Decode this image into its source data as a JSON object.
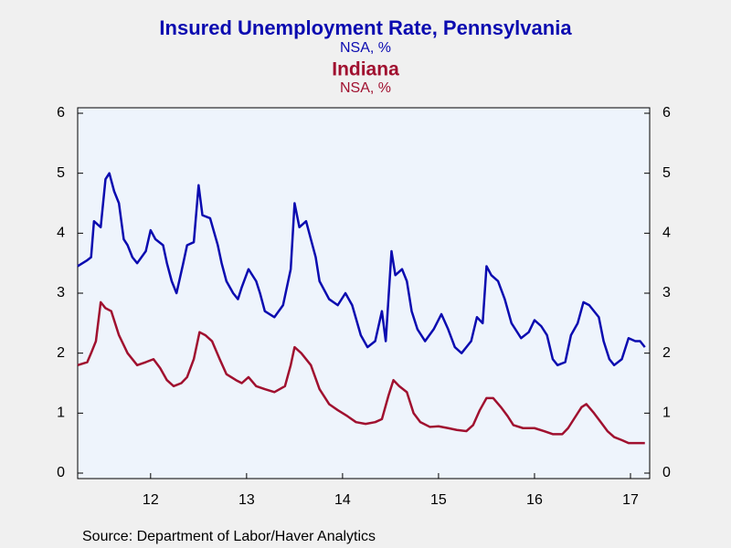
{
  "chart_data": {
    "type": "line",
    "title": "Insured Unemployment Rate, Pennsylvania",
    "subtitle": "NSA, %",
    "title2": "Indiana",
    "subtitle2": "NSA, %",
    "source": "Source:  Department of Labor/Haver Analytics",
    "xlim": [
      2011.74,
      2017.7
    ],
    "xticks": [
      {
        "value": 2012.5,
        "label": "12"
      },
      {
        "value": 2013.5,
        "label": "13"
      },
      {
        "value": 2014.5,
        "label": "14"
      },
      {
        "value": 2015.5,
        "label": "15"
      },
      {
        "value": 2016.5,
        "label": "16"
      },
      {
        "value": 2017.5,
        "label": "17"
      }
    ],
    "ylim": [
      0,
      6
    ],
    "yticks": [
      0,
      1,
      2,
      3,
      4,
      5,
      6
    ],
    "y2lim": [
      0,
      6
    ],
    "y2ticks": [
      0,
      1,
      2,
      3,
      4,
      5,
      6
    ],
    "series": [
      {
        "name": "Pennsylvania",
        "color": "#0b0bb0",
        "x": [
          2011.74,
          2011.84,
          2011.88,
          2011.91,
          2011.98,
          2012.03,
          2012.07,
          2012.12,
          2012.17,
          2012.22,
          2012.26,
          2012.31,
          2012.36,
          2012.45,
          2012.5,
          2012.55,
          2012.63,
          2012.67,
          2012.72,
          2012.77,
          2012.84,
          2012.88,
          2012.95,
          2013.0,
          2013.04,
          2013.12,
          2013.2,
          2013.24,
          2013.29,
          2013.36,
          2013.41,
          2013.45,
          2013.52,
          2013.6,
          2013.64,
          2013.69,
          2013.79,
          2013.88,
          2013.96,
          2014.0,
          2014.05,
          2014.12,
          2014.17,
          2014.22,
          2014.26,
          2014.36,
          2014.45,
          2014.53,
          2014.6,
          2014.69,
          2014.76,
          2014.84,
          2014.91,
          2014.95,
          2015.01,
          2015.05,
          2015.12,
          2015.17,
          2015.22,
          2015.28,
          2015.36,
          2015.45,
          2015.53,
          2015.6,
          2015.67,
          2015.74,
          2015.84,
          2015.9,
          2015.96,
          2016.0,
          2016.05,
          2016.12,
          2016.19,
          2016.26,
          2016.36,
          2016.44,
          2016.5,
          2016.57,
          2016.63,
          2016.69,
          2016.74,
          2016.82,
          2016.88,
          2016.95,
          2017.01,
          2017.07,
          2017.17,
          2017.22,
          2017.28,
          2017.33,
          2017.41,
          2017.48,
          2017.55,
          2017.6,
          2017.65
        ],
        "values": [
          3.45,
          3.55,
          3.6,
          4.2,
          4.1,
          4.9,
          5.0,
          4.7,
          4.5,
          3.9,
          3.8,
          3.6,
          3.5,
          3.7,
          4.05,
          3.9,
          3.8,
          3.5,
          3.2,
          3.0,
          3.5,
          3.8,
          3.85,
          4.8,
          4.3,
          4.25,
          3.8,
          3.5,
          3.2,
          3.0,
          2.9,
          3.1,
          3.4,
          3.2,
          3.0,
          2.7,
          2.6,
          2.8,
          3.4,
          4.5,
          4.1,
          4.2,
          3.9,
          3.6,
          3.2,
          2.9,
          2.8,
          3.0,
          2.8,
          2.3,
          2.1,
          2.2,
          2.7,
          2.2,
          3.7,
          3.3,
          3.4,
          3.2,
          2.7,
          2.4,
          2.2,
          2.4,
          2.65,
          2.4,
          2.1,
          2.0,
          2.2,
          2.6,
          2.5,
          3.45,
          3.3,
          3.2,
          2.9,
          2.5,
          2.25,
          2.35,
          2.55,
          2.45,
          2.3,
          1.9,
          1.8,
          1.85,
          2.3,
          2.5,
          2.85,
          2.8,
          2.6,
          2.2,
          1.9,
          1.8,
          1.9,
          2.25,
          2.2,
          2.2,
          2.1
        ]
      },
      {
        "name": "Indiana",
        "color": "#a0102f",
        "axis": "y2",
        "x": [
          2011.74,
          2011.84,
          2011.88,
          2011.93,
          2011.98,
          2012.03,
          2012.09,
          2012.17,
          2012.26,
          2012.36,
          2012.45,
          2012.53,
          2012.6,
          2012.67,
          2012.74,
          2012.82,
          2012.88,
          2012.95,
          2013.01,
          2013.07,
          2013.14,
          2013.22,
          2013.29,
          2013.39,
          2013.45,
          2013.52,
          2013.6,
          2013.69,
          2013.79,
          2013.9,
          2013.96,
          2014.0,
          2014.07,
          2014.17,
          2014.26,
          2014.36,
          2014.45,
          2014.55,
          2014.64,
          2014.74,
          2014.84,
          2014.91,
          2014.98,
          2015.03,
          2015.09,
          2015.17,
          2015.24,
          2015.31,
          2015.41,
          2015.5,
          2015.6,
          2015.69,
          2015.79,
          2015.86,
          2015.93,
          2016.0,
          2016.07,
          2016.15,
          2016.22,
          2016.28,
          2016.38,
          2016.5,
          2016.6,
          2016.69,
          2016.79,
          2016.85,
          2016.93,
          2016.99,
          2017.04,
          2017.12,
          2017.19,
          2017.26,
          2017.33,
          2017.41,
          2017.48,
          2017.55,
          2017.65
        ],
        "values": [
          1.8,
          1.85,
          2.0,
          2.2,
          2.85,
          2.75,
          2.7,
          2.3,
          2.0,
          1.8,
          1.85,
          1.9,
          1.75,
          1.55,
          1.45,
          1.5,
          1.6,
          1.9,
          2.35,
          2.3,
          2.2,
          1.9,
          1.65,
          1.55,
          1.5,
          1.6,
          1.45,
          1.4,
          1.35,
          1.45,
          1.8,
          2.1,
          2.0,
          1.8,
          1.4,
          1.15,
          1.05,
          0.95,
          0.85,
          0.82,
          0.85,
          0.9,
          1.3,
          1.55,
          1.45,
          1.35,
          1.0,
          0.85,
          0.77,
          0.78,
          0.75,
          0.72,
          0.7,
          0.8,
          1.05,
          1.25,
          1.25,
          1.1,
          0.95,
          0.8,
          0.75,
          0.75,
          0.7,
          0.65,
          0.65,
          0.75,
          0.95,
          1.1,
          1.15,
          1.0,
          0.85,
          0.7,
          0.6,
          0.55,
          0.5,
          0.5,
          0.5
        ]
      }
    ]
  }
}
